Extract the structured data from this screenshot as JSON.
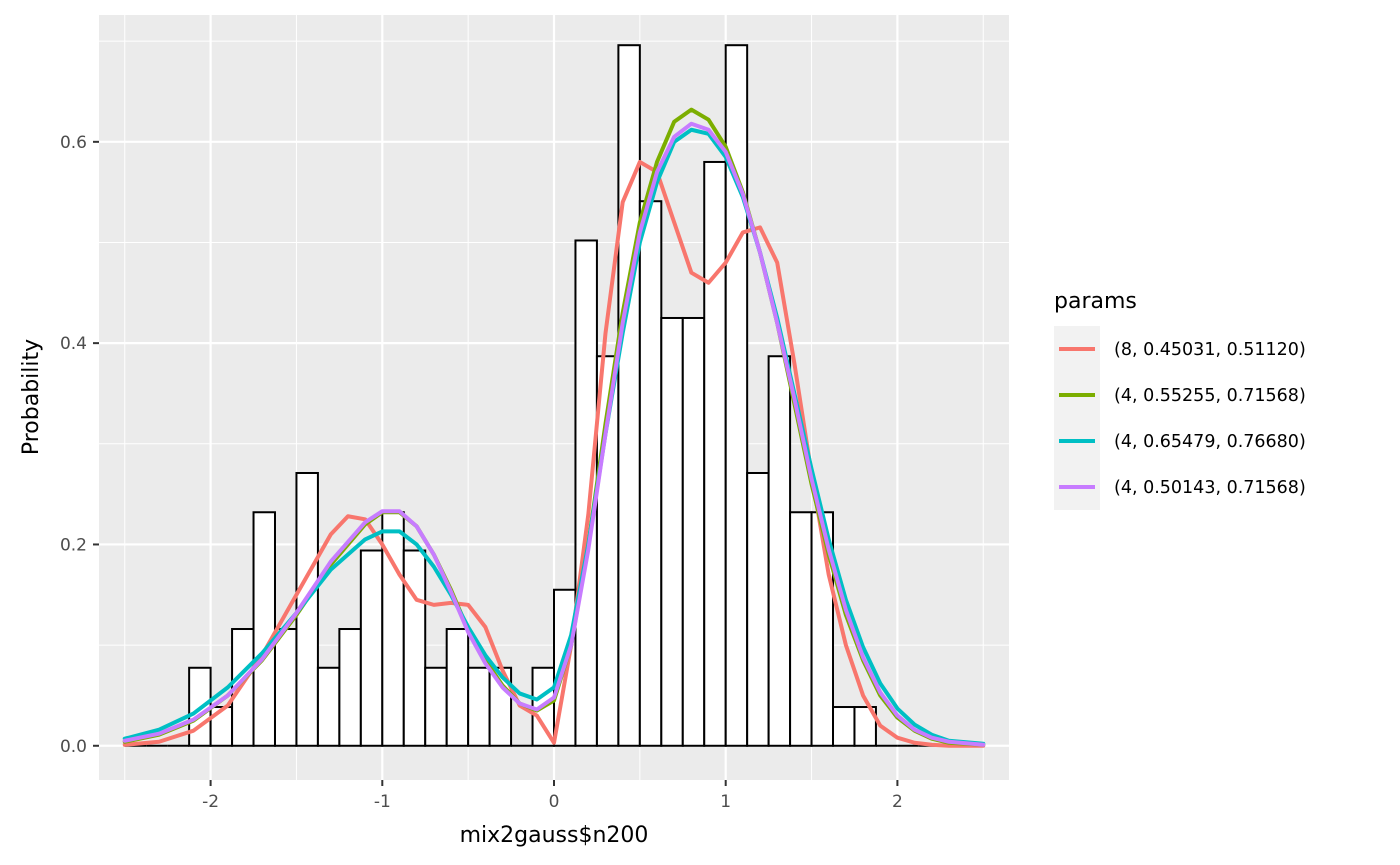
{
  "chart_data": {
    "type": "histogram-with-lines",
    "xlabel": "mix2gauss$n200",
    "ylabel": "Probability",
    "xlim": [
      -2.65,
      2.65
    ],
    "ylim": [
      -0.034,
      0.726
    ],
    "x_ticks": [
      -2,
      -1,
      0,
      1,
      2
    ],
    "x_tick_labels": [
      "-2",
      "-1",
      "0",
      "1",
      "2"
    ],
    "y_ticks": [
      0.0,
      0.2,
      0.4,
      0.6
    ],
    "y_tick_labels": [
      "0.0",
      "0.2",
      "0.4",
      "0.6"
    ],
    "grid": true,
    "histogram": {
      "bin_left_edges": [
        -2.5,
        -2.375,
        -2.25,
        -2.125,
        -2.0,
        -1.875,
        -1.75,
        -1.625,
        -1.5,
        -1.375,
        -1.25,
        -1.125,
        -1.0,
        -0.875,
        -0.75,
        -0.625,
        -0.5,
        -0.375,
        -0.25,
        -0.125,
        0.0,
        0.125,
        0.25,
        0.375,
        0.5,
        0.625,
        0.75,
        0.875,
        1.0,
        1.125,
        1.25,
        1.375,
        1.5,
        1.625,
        1.75,
        1.875,
        2.0,
        2.125,
        2.25,
        2.375
      ],
      "bin_width": 0.125,
      "values": [
        0.0,
        0.0,
        0.0,
        0.0775,
        0.0385,
        0.116,
        0.232,
        0.116,
        0.271,
        0.0775,
        0.116,
        0.194,
        0.232,
        0.194,
        0.0775,
        0.116,
        0.0775,
        0.0775,
        0.0,
        0.0775,
        0.155,
        0.502,
        0.387,
        0.696,
        0.541,
        0.425,
        0.425,
        0.58,
        0.696,
        0.271,
        0.387,
        0.232,
        0.232,
        0.0385,
        0.0385,
        0.0,
        0.0,
        0.0,
        0.0,
        0.0
      ]
    },
    "legend": {
      "title": "params",
      "placement": "right"
    },
    "series": [
      {
        "name": "(8, 0.45031, 0.51120)",
        "color": "#F8766D",
        "x": [
          -2.5,
          -2.3,
          -2.1,
          -1.9,
          -1.7,
          -1.5,
          -1.3,
          -1.2,
          -1.1,
          -1.0,
          -0.9,
          -0.8,
          -0.7,
          -0.6,
          -0.5,
          -0.4,
          -0.3,
          -0.2,
          -0.1,
          0.0,
          0.1,
          0.2,
          0.3,
          0.4,
          0.5,
          0.6,
          0.7,
          0.8,
          0.9,
          1.0,
          1.1,
          1.2,
          1.3,
          1.4,
          1.5,
          1.6,
          1.7,
          1.8,
          1.9,
          2.0,
          2.1,
          2.2,
          2.3,
          2.5
        ],
        "y": [
          0.001,
          0.004,
          0.015,
          0.04,
          0.09,
          0.15,
          0.21,
          0.228,
          0.225,
          0.2,
          0.17,
          0.145,
          0.14,
          0.142,
          0.14,
          0.118,
          0.075,
          0.04,
          0.03,
          0.003,
          0.1,
          0.23,
          0.41,
          0.54,
          0.58,
          0.57,
          0.52,
          0.47,
          0.46,
          0.48,
          0.51,
          0.515,
          0.48,
          0.38,
          0.27,
          0.17,
          0.1,
          0.05,
          0.02,
          0.008,
          0.003,
          0.001,
          0.0,
          0.0
        ]
      },
      {
        "name": "(4, 0.55255, 0.71568)",
        "color": "#7CAE00",
        "x": [
          -2.5,
          -2.3,
          -2.1,
          -1.9,
          -1.7,
          -1.5,
          -1.3,
          -1.1,
          -1.0,
          -0.9,
          -0.8,
          -0.7,
          -0.6,
          -0.5,
          -0.4,
          -0.3,
          -0.2,
          -0.1,
          0.0,
          0.1,
          0.2,
          0.3,
          0.4,
          0.5,
          0.6,
          0.7,
          0.8,
          0.9,
          1.0,
          1.1,
          1.2,
          1.3,
          1.4,
          1.5,
          1.6,
          1.7,
          1.8,
          1.9,
          2.0,
          2.1,
          2.2,
          2.3,
          2.5
        ],
        "y": [
          0.004,
          0.011,
          0.025,
          0.05,
          0.085,
          0.13,
          0.18,
          0.22,
          0.232,
          0.232,
          0.218,
          0.19,
          0.155,
          0.115,
          0.085,
          0.06,
          0.042,
          0.035,
          0.045,
          0.1,
          0.2,
          0.32,
          0.43,
          0.52,
          0.58,
          0.62,
          0.632,
          0.622,
          0.595,
          0.55,
          0.49,
          0.42,
          0.34,
          0.26,
          0.19,
          0.13,
          0.085,
          0.05,
          0.028,
          0.015,
          0.007,
          0.003,
          0.001
        ]
      },
      {
        "name": "(4, 0.65479, 0.76680)",
        "color": "#00BFC4",
        "x": [
          -2.5,
          -2.3,
          -2.1,
          -1.9,
          -1.7,
          -1.5,
          -1.3,
          -1.1,
          -1.0,
          -0.9,
          -0.8,
          -0.7,
          -0.6,
          -0.5,
          -0.4,
          -0.3,
          -0.2,
          -0.1,
          0.0,
          0.1,
          0.2,
          0.3,
          0.4,
          0.5,
          0.6,
          0.7,
          0.8,
          0.9,
          1.0,
          1.1,
          1.2,
          1.3,
          1.4,
          1.5,
          1.6,
          1.7,
          1.8,
          1.9,
          2.0,
          2.1,
          2.2,
          2.3,
          2.5
        ],
        "y": [
          0.007,
          0.016,
          0.032,
          0.058,
          0.092,
          0.132,
          0.175,
          0.205,
          0.213,
          0.213,
          0.2,
          0.178,
          0.15,
          0.118,
          0.09,
          0.068,
          0.052,
          0.046,
          0.058,
          0.11,
          0.2,
          0.31,
          0.41,
          0.5,
          0.56,
          0.6,
          0.612,
          0.608,
          0.585,
          0.545,
          0.49,
          0.425,
          0.35,
          0.275,
          0.205,
          0.145,
          0.098,
          0.062,
          0.037,
          0.021,
          0.011,
          0.005,
          0.002
        ]
      },
      {
        "name": "(4, 0.50143, 0.71568)",
        "color": "#C77CFF",
        "x": [
          -2.5,
          -2.3,
          -2.1,
          -1.9,
          -1.7,
          -1.5,
          -1.3,
          -1.1,
          -1.0,
          -0.9,
          -0.8,
          -0.7,
          -0.6,
          -0.5,
          -0.4,
          -0.3,
          -0.2,
          -0.1,
          0.0,
          0.1,
          0.2,
          0.3,
          0.4,
          0.5,
          0.6,
          0.7,
          0.8,
          0.9,
          1.0,
          1.1,
          1.2,
          1.3,
          1.4,
          1.5,
          1.6,
          1.7,
          1.8,
          1.9,
          2.0,
          2.1,
          2.2,
          2.3,
          2.5
        ],
        "y": [
          0.005,
          0.012,
          0.026,
          0.05,
          0.086,
          0.132,
          0.183,
          0.222,
          0.233,
          0.233,
          0.218,
          0.19,
          0.153,
          0.113,
          0.082,
          0.058,
          0.042,
          0.036,
          0.048,
          0.1,
          0.195,
          0.31,
          0.42,
          0.51,
          0.57,
          0.605,
          0.618,
          0.612,
          0.59,
          0.548,
          0.49,
          0.42,
          0.345,
          0.265,
          0.195,
          0.135,
          0.088,
          0.053,
          0.03,
          0.016,
          0.008,
          0.004,
          0.001
        ]
      }
    ]
  }
}
